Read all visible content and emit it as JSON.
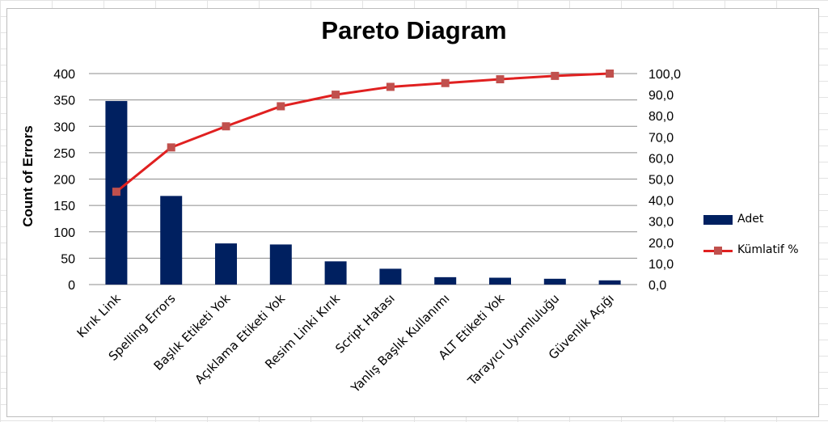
{
  "chart_data": {
    "type": "bar+line",
    "title": "Pareto Diagram",
    "ylabel": "Count of Errors",
    "xlabel": "",
    "categories": [
      "Kırık Link",
      "Spelling Errors",
      "Başlık Etiketi Yok",
      "Açıklama Etiketi Yok",
      "Resim Linki Kırık",
      "Script Hatası",
      "Yanlış Başlık Kullanımı",
      "ALT Etiketi Yok",
      "Tarayıcı Uyumluluğu",
      "Güvenlik Açığı"
    ],
    "series": [
      {
        "name": "Adet",
        "type": "bar",
        "axis": "left",
        "color": "#002060",
        "values": [
          348,
          168,
          78,
          76,
          44,
          30,
          14,
          13,
          11,
          8
        ]
      },
      {
        "name": "Kümlatif %",
        "type": "line",
        "axis": "right",
        "color": "#e02020",
        "marker_color": "#c0504d",
        "values": [
          44.0,
          65.0,
          75.0,
          84.5,
          90.0,
          93.7,
          95.5,
          97.3,
          98.9,
          100.0
        ]
      }
    ],
    "ylim": [
      0,
      400
    ],
    "y_ticks": [
      "0",
      "50",
      "100",
      "150",
      "200",
      "250",
      "300",
      "350",
      "400"
    ],
    "y2lim": [
      0,
      100
    ],
    "y2_ticks": [
      "0,0",
      "10,0",
      "20,0",
      "30,0",
      "40,0",
      "50,0",
      "60,0",
      "70,0",
      "80,0",
      "90,0",
      "100,0"
    ],
    "grid": true,
    "legend": "right"
  }
}
